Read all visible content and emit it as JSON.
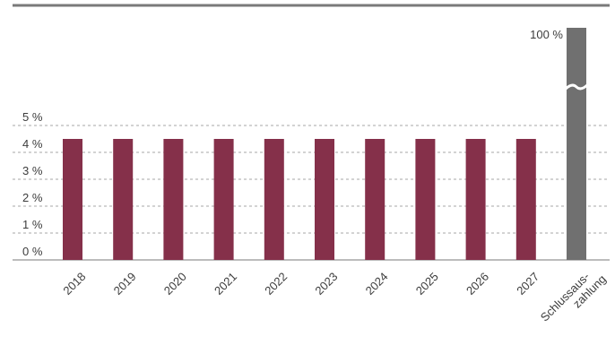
{
  "chart_data": {
    "type": "bar",
    "categories": [
      "2018",
      "2019",
      "2020",
      "2021",
      "2022",
      "2023",
      "2024",
      "2025",
      "2026",
      "2027",
      "Schlussaus-zahlung"
    ],
    "category_label_lines": [
      [
        "2018"
      ],
      [
        "2019"
      ],
      [
        "2020"
      ],
      [
        "2021"
      ],
      [
        "2022"
      ],
      [
        "2023"
      ],
      [
        "2024"
      ],
      [
        "2025"
      ],
      [
        "2026"
      ],
      [
        "2027"
      ],
      [
        "Schlussaus-",
        "zahlung"
      ]
    ],
    "values": [
      4.5,
      4.5,
      4.5,
      4.5,
      4.5,
      4.5,
      4.5,
      4.5,
      4.5,
      4.5,
      100
    ],
    "value_labels": [
      "",
      "",
      "",
      "",
      "",
      "",
      "",
      "",
      "",
      "",
      "100 %"
    ],
    "bar_colors": [
      "#85304a",
      "#85304a",
      "#85304a",
      "#85304a",
      "#85304a",
      "#85304a",
      "#85304a",
      "#85304a",
      "#85304a",
      "#85304a",
      "#707070"
    ],
    "y_ticks": [
      0,
      1,
      2,
      3,
      4,
      5
    ],
    "y_tick_labels": [
      "0 %",
      "1 %",
      "2 %",
      "3 %",
      "4 %",
      "5 %"
    ],
    "ylim": [
      0,
      5
    ],
    "axis_break": "final bar (break symbol)",
    "grid": "dashed horizontal",
    "title": "",
    "xlabel": "",
    "ylabel": "",
    "colors": {
      "primary": "#85304a",
      "final": "#707070",
      "grid": "#8a8a8a",
      "rule": "#7a7a7a"
    }
  }
}
